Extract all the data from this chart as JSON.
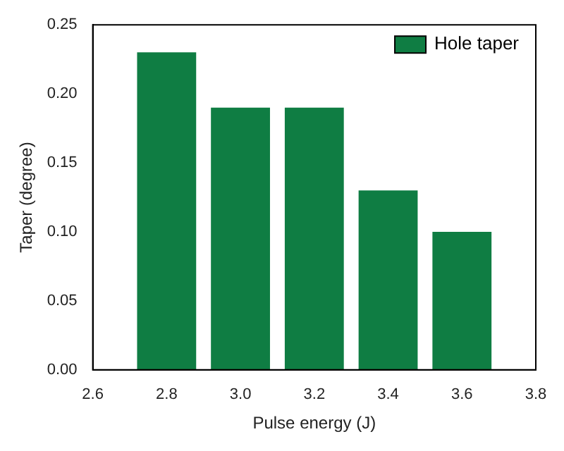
{
  "chart_data": {
    "type": "bar",
    "xlabel": "Pulse energy (J)",
    "ylabel": "Taper (degree)",
    "x": [
      2.8,
      3.0,
      3.2,
      3.4,
      3.6
    ],
    "series": [
      {
        "name": "Hole taper",
        "color": "#0f7d43",
        "values": [
          0.23,
          0.19,
          0.19,
          0.13,
          0.1
        ]
      }
    ],
    "xlim": [
      2.6,
      3.8
    ],
    "xticks": [
      2.6,
      2.8,
      {
        "value": 3,
        "label": "3.0"
      },
      3.2,
      3.4,
      3.6,
      3.8
    ],
    "ylim": [
      0,
      0.25
    ],
    "yticks": [
      {
        "value": 0,
        "label": "0.00"
      },
      {
        "value": 0.05,
        "label": "0.05"
      },
      {
        "value": 0.1,
        "label": "0.10"
      },
      {
        "value": 0.15,
        "label": "0.15"
      },
      {
        "value": 0.2,
        "label": "0.20"
      },
      {
        "value": 0.25,
        "label": "0.25"
      }
    ],
    "grid": false,
    "legend": "top right"
  }
}
